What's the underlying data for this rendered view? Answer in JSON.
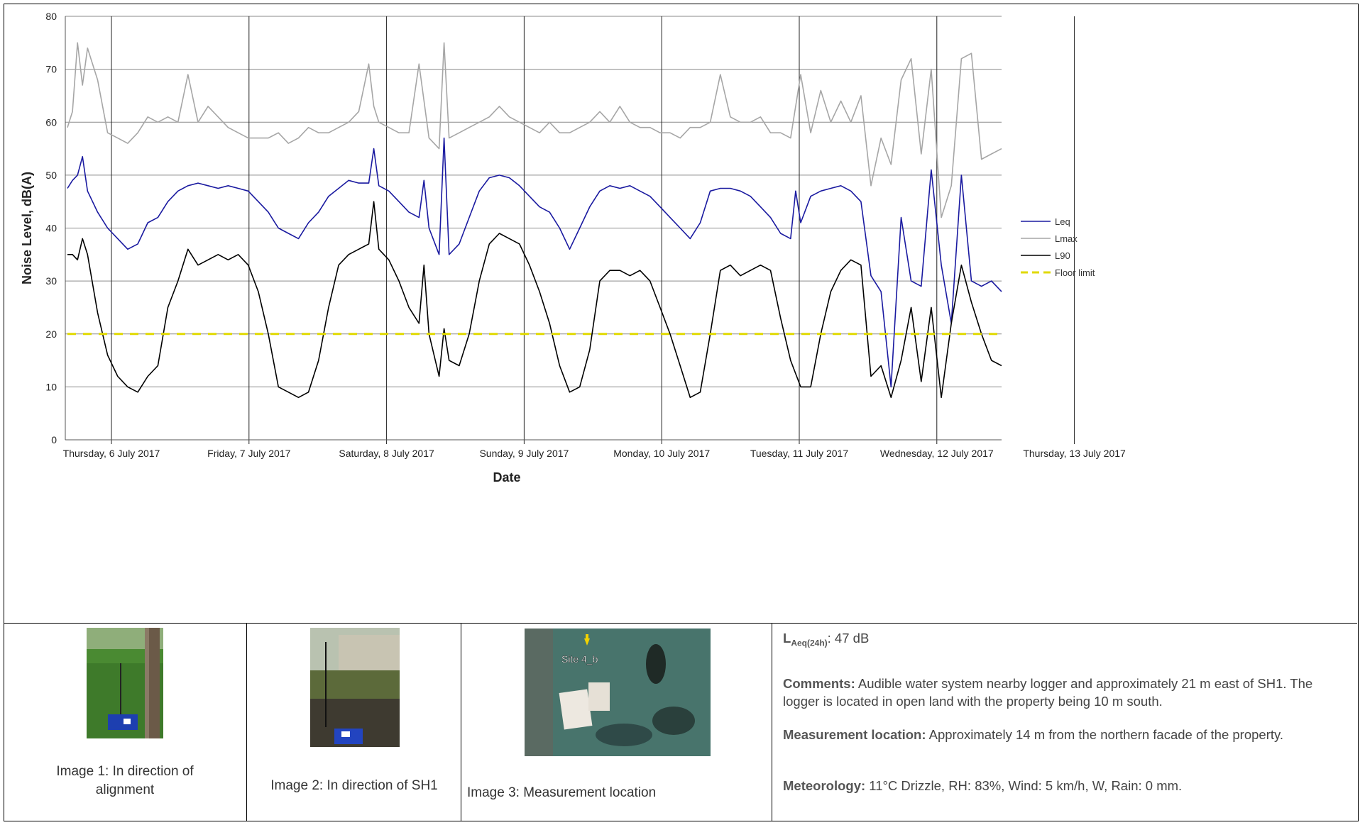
{
  "chart_data": {
    "type": "line",
    "title": "",
    "xlabel": "Date",
    "ylabel": "Noise Level, dB(A)",
    "ylim": [
      0,
      80
    ],
    "yticks": [
      0,
      10,
      20,
      30,
      40,
      50,
      60,
      70,
      80
    ],
    "xticks": [
      "Thursday, 6 July 2017",
      "Friday, 7 July 2017",
      "Saturday, 8 July 2017",
      "Sunday, 9 July 2017",
      "Monday, 10 July 2017",
      "Tuesday, 11 July 2017",
      "Wednesday, 12 July 2017",
      "Thursday, 13 July 2017"
    ],
    "x_range_days": [
      0,
      7.47
    ],
    "grid": true,
    "legend_position": "right",
    "series": [
      {
        "name": "Leq",
        "color": "#1a1aa0",
        "points": [
          [
            0,
            47.5
          ],
          [
            0.05,
            49
          ],
          [
            0.1,
            50
          ],
          [
            0.15,
            53.5
          ],
          [
            0.2,
            47
          ],
          [
            0.3,
            43
          ],
          [
            0.4,
            40
          ],
          [
            0.5,
            38
          ],
          [
            0.6,
            36
          ],
          [
            0.7,
            37
          ],
          [
            0.8,
            41
          ],
          [
            0.9,
            42
          ],
          [
            1.0,
            45
          ],
          [
            1.1,
            47
          ],
          [
            1.2,
            48
          ],
          [
            1.3,
            48.5
          ],
          [
            1.4,
            48
          ],
          [
            1.5,
            47.5
          ],
          [
            1.6,
            48
          ],
          [
            1.7,
            47.5
          ],
          [
            1.8,
            47
          ],
          [
            1.9,
            45
          ],
          [
            2.0,
            43
          ],
          [
            2.1,
            40
          ],
          [
            2.2,
            39
          ],
          [
            2.3,
            38
          ],
          [
            2.4,
            41
          ],
          [
            2.5,
            43
          ],
          [
            2.6,
            46
          ],
          [
            2.7,
            47.5
          ],
          [
            2.8,
            49
          ],
          [
            2.9,
            48.5
          ],
          [
            3.0,
            48.5
          ],
          [
            3.05,
            55
          ],
          [
            3.1,
            48
          ],
          [
            3.2,
            47
          ],
          [
            3.3,
            45
          ],
          [
            3.4,
            43
          ],
          [
            3.5,
            42
          ],
          [
            3.55,
            49
          ],
          [
            3.6,
            40
          ],
          [
            3.7,
            35
          ],
          [
            3.75,
            57
          ],
          [
            3.8,
            35
          ],
          [
            3.9,
            37
          ],
          [
            4.0,
            42
          ],
          [
            4.1,
            47
          ],
          [
            4.2,
            49.5
          ],
          [
            4.3,
            50
          ],
          [
            4.4,
            49.5
          ],
          [
            4.5,
            48
          ],
          [
            4.6,
            46
          ],
          [
            4.7,
            44
          ],
          [
            4.8,
            43
          ],
          [
            4.9,
            40
          ],
          [
            5.0,
            36
          ],
          [
            5.1,
            40
          ],
          [
            5.2,
            44
          ],
          [
            5.3,
            47
          ],
          [
            5.4,
            48
          ],
          [
            5.5,
            47.5
          ],
          [
            5.6,
            48
          ],
          [
            5.7,
            47
          ],
          [
            5.8,
            46
          ],
          [
            5.9,
            44
          ],
          [
            6.0,
            42
          ],
          [
            6.1,
            40
          ],
          [
            6.2,
            38
          ],
          [
            6.3,
            41
          ],
          [
            6.4,
            47
          ],
          [
            6.5,
            47.5
          ],
          [
            6.6,
            47.5
          ],
          [
            6.7,
            47
          ],
          [
            6.8,
            46
          ],
          [
            6.9,
            44
          ],
          [
            7.0,
            42
          ],
          [
            7.1,
            39
          ],
          [
            7.2,
            38
          ],
          [
            7.25,
            47
          ],
          [
            7.3,
            41
          ],
          [
            7.4,
            46
          ],
          [
            7.5,
            47
          ],
          [
            7.6,
            47.5
          ],
          [
            7.7,
            48
          ],
          [
            7.8,
            47
          ],
          [
            7.9,
            45
          ],
          [
            8.0,
            31
          ],
          [
            8.1,
            28
          ],
          [
            8.2,
            10
          ],
          [
            8.3,
            42
          ],
          [
            8.4,
            30
          ],
          [
            8.5,
            29
          ],
          [
            8.6,
            51
          ],
          [
            8.7,
            33
          ],
          [
            8.8,
            22
          ],
          [
            8.9,
            50
          ],
          [
            9.0,
            30
          ],
          [
            9.1,
            29
          ],
          [
            9.2,
            30
          ],
          [
            9.3,
            28
          ]
        ]
      },
      {
        "name": "Lmax",
        "color": "#a6a6a6",
        "points": [
          [
            0,
            59
          ],
          [
            0.05,
            62
          ],
          [
            0.1,
            75
          ],
          [
            0.15,
            67
          ],
          [
            0.2,
            74
          ],
          [
            0.3,
            68
          ],
          [
            0.4,
            58
          ],
          [
            0.5,
            57
          ],
          [
            0.6,
            56
          ],
          [
            0.7,
            58
          ],
          [
            0.8,
            61
          ],
          [
            0.9,
            60
          ],
          [
            1.0,
            61
          ],
          [
            1.1,
            60
          ],
          [
            1.2,
            69
          ],
          [
            1.3,
            60
          ],
          [
            1.4,
            63
          ],
          [
            1.5,
            61
          ],
          [
            1.6,
            59
          ],
          [
            1.7,
            58
          ],
          [
            1.8,
            57
          ],
          [
            1.9,
            57
          ],
          [
            2.0,
            57
          ],
          [
            2.1,
            58
          ],
          [
            2.2,
            56
          ],
          [
            2.3,
            57
          ],
          [
            2.4,
            59
          ],
          [
            2.5,
            58
          ],
          [
            2.6,
            58
          ],
          [
            2.7,
            59
          ],
          [
            2.8,
            60
          ],
          [
            2.9,
            62
          ],
          [
            3.0,
            71
          ],
          [
            3.05,
            63
          ],
          [
            3.1,
            60
          ],
          [
            3.2,
            59
          ],
          [
            3.3,
            58
          ],
          [
            3.4,
            58
          ],
          [
            3.5,
            71
          ],
          [
            3.6,
            57
          ],
          [
            3.7,
            55
          ],
          [
            3.75,
            75
          ],
          [
            3.8,
            57
          ],
          [
            3.9,
            58
          ],
          [
            4.0,
            59
          ],
          [
            4.1,
            60
          ],
          [
            4.2,
            61
          ],
          [
            4.3,
            63
          ],
          [
            4.4,
            61
          ],
          [
            4.5,
            60
          ],
          [
            4.6,
            59
          ],
          [
            4.7,
            58
          ],
          [
            4.8,
            60
          ],
          [
            4.9,
            58
          ],
          [
            5.0,
            58
          ],
          [
            5.1,
            59
          ],
          [
            5.2,
            60
          ],
          [
            5.3,
            62
          ],
          [
            5.4,
            60
          ],
          [
            5.5,
            63
          ],
          [
            5.6,
            60
          ],
          [
            5.7,
            59
          ],
          [
            5.8,
            59
          ],
          [
            5.9,
            58
          ],
          [
            6.0,
            58
          ],
          [
            6.1,
            57
          ],
          [
            6.2,
            59
          ],
          [
            6.3,
            59
          ],
          [
            6.4,
            60
          ],
          [
            6.5,
            69
          ],
          [
            6.6,
            61
          ],
          [
            6.7,
            60
          ],
          [
            6.8,
            60
          ],
          [
            6.9,
            61
          ],
          [
            7.0,
            58
          ],
          [
            7.1,
            58
          ],
          [
            7.2,
            57
          ],
          [
            7.3,
            69
          ],
          [
            7.4,
            58
          ],
          [
            7.5,
            66
          ],
          [
            7.6,
            60
          ],
          [
            7.7,
            64
          ],
          [
            7.8,
            60
          ],
          [
            7.9,
            65
          ],
          [
            8.0,
            48
          ],
          [
            8.1,
            57
          ],
          [
            8.2,
            52
          ],
          [
            8.3,
            68
          ],
          [
            8.4,
            72
          ],
          [
            8.5,
            54
          ],
          [
            8.6,
            70
          ],
          [
            8.7,
            42
          ],
          [
            8.8,
            48
          ],
          [
            8.9,
            72
          ],
          [
            9.0,
            73
          ],
          [
            9.1,
            53
          ],
          [
            9.2,
            54
          ],
          [
            9.3,
            55
          ]
        ]
      },
      {
        "name": "L90",
        "color": "#000000",
        "points": [
          [
            0,
            35
          ],
          [
            0.05,
            35
          ],
          [
            0.1,
            34
          ],
          [
            0.15,
            38
          ],
          [
            0.2,
            35
          ],
          [
            0.3,
            24
          ],
          [
            0.4,
            16
          ],
          [
            0.5,
            12
          ],
          [
            0.6,
            10
          ],
          [
            0.7,
            9
          ],
          [
            0.8,
            12
          ],
          [
            0.9,
            14
          ],
          [
            1.0,
            25
          ],
          [
            1.1,
            30
          ],
          [
            1.2,
            36
          ],
          [
            1.3,
            33
          ],
          [
            1.4,
            34
          ],
          [
            1.5,
            35
          ],
          [
            1.6,
            34
          ],
          [
            1.7,
            35
          ],
          [
            1.8,
            33
          ],
          [
            1.9,
            28
          ],
          [
            2.0,
            20
          ],
          [
            2.1,
            10
          ],
          [
            2.2,
            9
          ],
          [
            2.3,
            8
          ],
          [
            2.4,
            9
          ],
          [
            2.5,
            15
          ],
          [
            2.6,
            25
          ],
          [
            2.7,
            33
          ],
          [
            2.8,
            35
          ],
          [
            2.9,
            36
          ],
          [
            3.0,
            37
          ],
          [
            3.05,
            45
          ],
          [
            3.1,
            36
          ],
          [
            3.2,
            34
          ],
          [
            3.3,
            30
          ],
          [
            3.4,
            25
          ],
          [
            3.5,
            22
          ],
          [
            3.55,
            33
          ],
          [
            3.6,
            20
          ],
          [
            3.7,
            12
          ],
          [
            3.75,
            21
          ],
          [
            3.8,
            15
          ],
          [
            3.9,
            14
          ],
          [
            4.0,
            20
          ],
          [
            4.1,
            30
          ],
          [
            4.2,
            37
          ],
          [
            4.3,
            39
          ],
          [
            4.4,
            38
          ],
          [
            4.5,
            37
          ],
          [
            4.6,
            33
          ],
          [
            4.7,
            28
          ],
          [
            4.8,
            22
          ],
          [
            4.9,
            14
          ],
          [
            5.0,
            9
          ],
          [
            5.1,
            10
          ],
          [
            5.2,
            17
          ],
          [
            5.3,
            30
          ],
          [
            5.4,
            32
          ],
          [
            5.5,
            32
          ],
          [
            5.6,
            31
          ],
          [
            5.7,
            32
          ],
          [
            5.8,
            30
          ],
          [
            5.9,
            25
          ],
          [
            6.0,
            20
          ],
          [
            6.1,
            14
          ],
          [
            6.2,
            8
          ],
          [
            6.3,
            9
          ],
          [
            6.4,
            20
          ],
          [
            6.5,
            32
          ],
          [
            6.6,
            33
          ],
          [
            6.7,
            31
          ],
          [
            6.8,
            32
          ],
          [
            6.9,
            33
          ],
          [
            7.0,
            32
          ],
          [
            7.1,
            23
          ],
          [
            7.2,
            15
          ],
          [
            7.3,
            10
          ],
          [
            7.4,
            10
          ],
          [
            7.5,
            20
          ],
          [
            7.6,
            28
          ],
          [
            7.7,
            32
          ],
          [
            7.8,
            34
          ],
          [
            7.9,
            33
          ],
          [
            8.0,
            12
          ],
          [
            8.1,
            14
          ],
          [
            8.2,
            8
          ],
          [
            8.3,
            15
          ],
          [
            8.4,
            25
          ],
          [
            8.5,
            11
          ],
          [
            8.6,
            25
          ],
          [
            8.7,
            8
          ],
          [
            8.8,
            22
          ],
          [
            8.9,
            33
          ],
          [
            9.0,
            26
          ],
          [
            9.1,
            20
          ],
          [
            9.2,
            15
          ],
          [
            9.3,
            14
          ]
        ]
      },
      {
        "name": "Floor limit",
        "color": "#e0d900",
        "dashed": true,
        "points": [
          [
            0,
            20
          ],
          [
            9.3,
            20
          ]
        ]
      }
    ]
  },
  "panels": [
    {
      "caption": "Image 1: In direction of alignment"
    },
    {
      "caption": "Image 2: In direction of SH1"
    },
    {
      "caption": "Image 3: Measurement location",
      "map_label": "Site 4_b"
    }
  ],
  "info": {
    "laeq_label": "L",
    "laeq_sub": "Aeq(24h)",
    "laeq_value": ": 47 dB",
    "comments_label": "Comments:",
    "comments_text": " Audible water system nearby logger and approximately 21 m east of SH1. The logger is located in open land with the property being 10 m south.",
    "location_label": "Measurement location:",
    "location_text": " Approximately 14 m from the northern facade of the property.",
    "meteorology_label": "Meteorology:",
    "meteorology_text": " 11°C Drizzle, RH: 83%, Wind: 5 km/h, W, Rain: 0 mm."
  }
}
